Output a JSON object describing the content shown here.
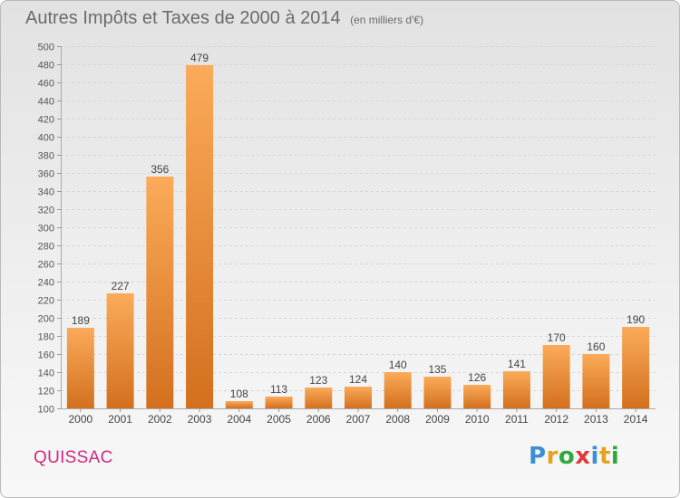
{
  "header": {
    "title": "Autres Impôts et Taxes de 2000 à 2014",
    "unit": "(en milliers d'€)"
  },
  "footer": {
    "place": "QUISSAC",
    "brand": {
      "letters": [
        "P",
        "r",
        "o",
        "x",
        "i",
        "t",
        "i"
      ],
      "colors": [
        "#3b8fd6",
        "#e8a11c",
        "#2eaa3c",
        "#e03a3a",
        "#3b8fd6",
        "#e8a11c",
        "#2eaa3c"
      ]
    }
  },
  "colors": {
    "bar_light": "#fbab5a",
    "bar_dark": "#d3701e",
    "place": "#d0297f"
  },
  "chart_data": {
    "type": "bar",
    "title": "Autres Impôts et Taxes de 2000 à 2014",
    "subtitle": "(en milliers d'€)",
    "xlabel": "",
    "ylabel": "",
    "categories": [
      "2000",
      "2001",
      "2002",
      "2003",
      "2004",
      "2005",
      "2006",
      "2007",
      "2008",
      "2009",
      "2010",
      "2011",
      "2012",
      "2013",
      "2014"
    ],
    "values": [
      189,
      227,
      356,
      479,
      108,
      113,
      123,
      124,
      140,
      135,
      126,
      141,
      170,
      160,
      190
    ],
    "ylim": [
      100,
      500
    ],
    "yticks": [
      100,
      120,
      140,
      160,
      180,
      200,
      220,
      240,
      260,
      280,
      300,
      320,
      340,
      360,
      380,
      400,
      420,
      440,
      460,
      480,
      500
    ],
    "grid": true,
    "legend": "none",
    "data_labels": true
  }
}
